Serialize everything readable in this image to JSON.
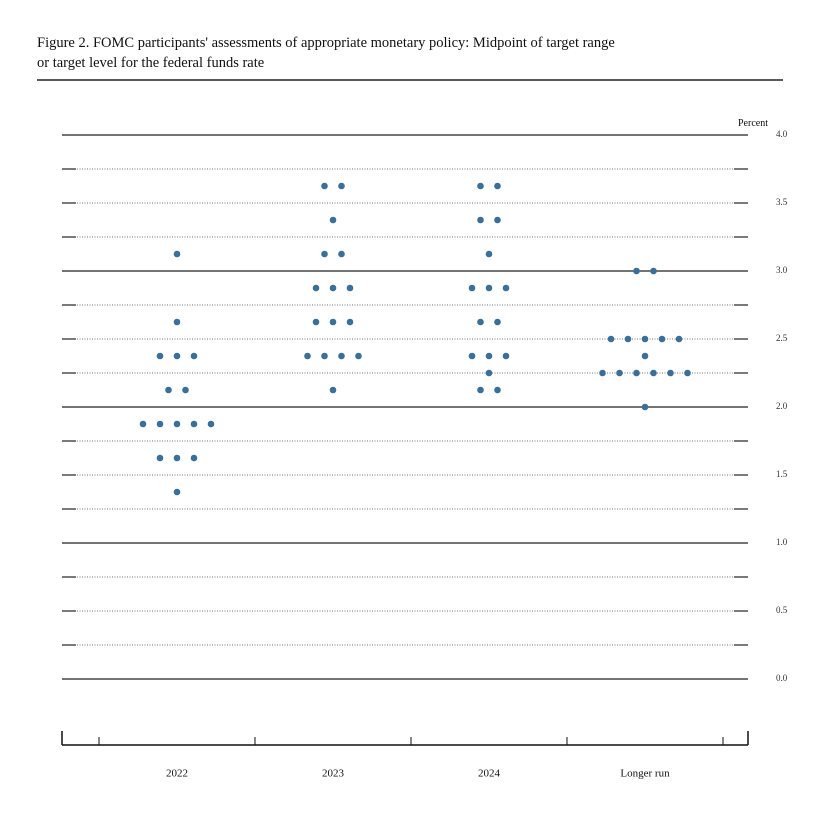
{
  "chart_data": {
    "type": "dot",
    "title_lines": [
      "Figure 2.  FOMC participants' assessments of appropriate monetary policy:  Midpoint of target range",
      "or target level for the federal funds rate"
    ],
    "y_label": "Percent",
    "categories": [
      "2022",
      "2023",
      "2024",
      "Longer run"
    ],
    "color": "#3a6f9a",
    "dots": [
      [
        {
          "rate": 3.125,
          "count": 1
        },
        {
          "rate": 2.625,
          "count": 1
        },
        {
          "rate": 2.375,
          "count": 3
        },
        {
          "rate": 2.125,
          "count": 2
        },
        {
          "rate": 1.875,
          "count": 5
        },
        {
          "rate": 1.625,
          "count": 3
        },
        {
          "rate": 1.375,
          "count": 1
        }
      ],
      [
        {
          "rate": 3.625,
          "count": 2
        },
        {
          "rate": 3.375,
          "count": 1
        },
        {
          "rate": 3.125,
          "count": 2
        },
        {
          "rate": 2.875,
          "count": 3
        },
        {
          "rate": 2.625,
          "count": 3
        },
        {
          "rate": 2.375,
          "count": 4
        },
        {
          "rate": 2.125,
          "count": 1
        }
      ],
      [
        {
          "rate": 3.625,
          "count": 2
        },
        {
          "rate": 3.375,
          "count": 2
        },
        {
          "rate": 3.125,
          "count": 1
        },
        {
          "rate": 2.875,
          "count": 3
        },
        {
          "rate": 2.625,
          "count": 2
        },
        {
          "rate": 2.375,
          "count": 3
        },
        {
          "rate": 2.25,
          "count": 1
        },
        {
          "rate": 2.125,
          "count": 2
        }
      ],
      [
        {
          "rate": 3.0,
          "count": 2
        },
        {
          "rate": 2.5,
          "count": 5
        },
        {
          "rate": 2.375,
          "count": 1
        },
        {
          "rate": 2.25,
          "count": 6
        },
        {
          "rate": 2.0,
          "count": 1
        }
      ]
    ],
    "ylim": [
      0,
      4
    ],
    "yticks": [
      {
        "value": 0,
        "label": "0.0"
      },
      {
        "value": 0.5,
        "label": "0.5"
      },
      {
        "value": 1,
        "label": "1.0"
      },
      {
        "value": 1.5,
        "label": "1.5"
      },
      {
        "value": 2,
        "label": "2.0"
      },
      {
        "value": 2.5,
        "label": "2.5"
      },
      {
        "value": 3,
        "label": "3.0"
      },
      {
        "value": 3.5,
        "label": "3.5"
      },
      {
        "value": 4,
        "label": "4.0"
      }
    ]
  }
}
